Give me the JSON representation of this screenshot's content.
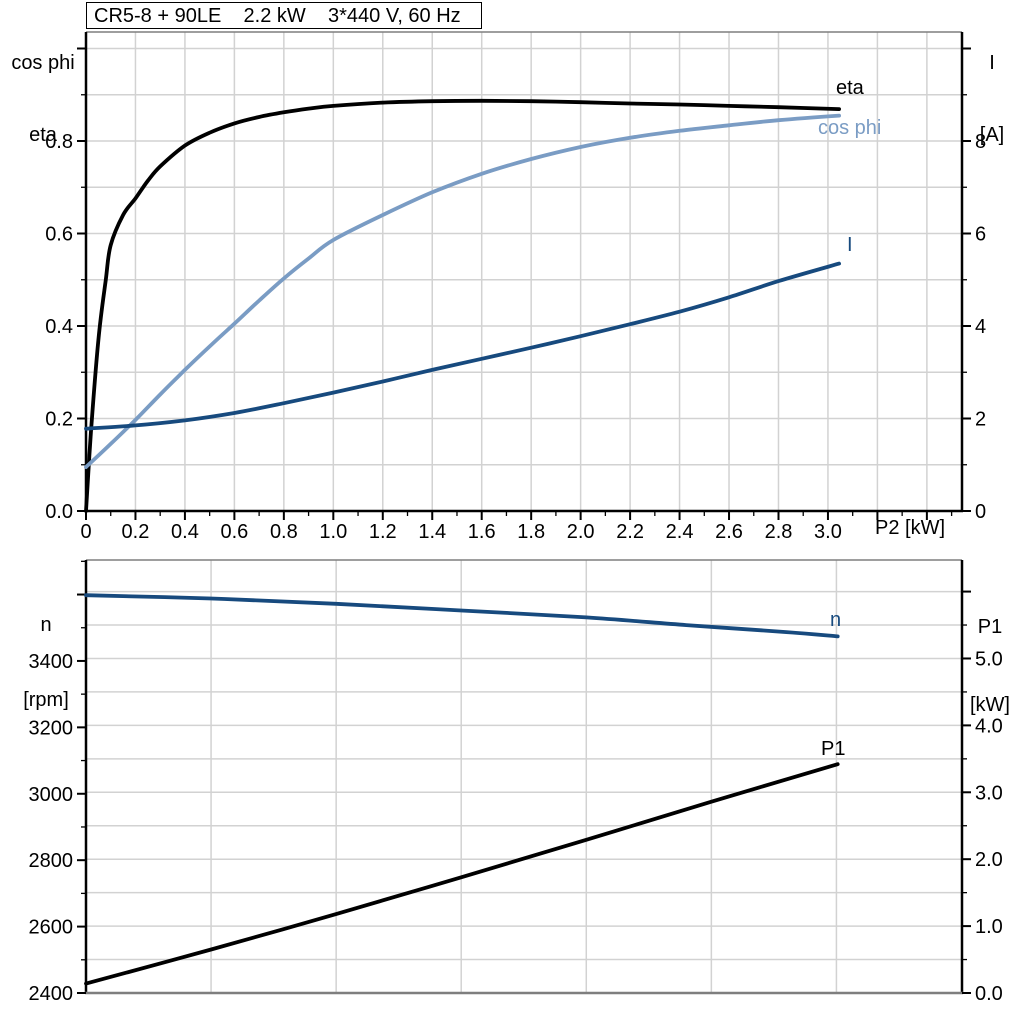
{
  "title": "CR5-8 + 90LE    2.2 kW    3*440 V, 60 Hz",
  "colors": {
    "grid": "#d2d2d2",
    "frame": "#000000",
    "frame_soft": "#7e7e7e",
    "tick": "#000000",
    "background": "#ffffff"
  },
  "chart_data": [
    {
      "type": "line",
      "name": "motor-efficiency-powerfactor-current",
      "x_axis": {
        "label": "P2 [kW]",
        "range": [
          0,
          3.542
        ],
        "major_step": 0.2,
        "minor_step": 0.1,
        "label_max": 3.0,
        "grid_step": 0.2,
        "grid_max": 3.4,
        "decimals": 1,
        "zero_label": "0"
      },
      "y_left": {
        "header_lines": [
          "cos phi",
          "eta"
        ],
        "range": [
          0,
          1.0357
        ],
        "major_step": 0.2,
        "minor_step": 0.1,
        "label_max": 0.8,
        "decimals": 1,
        "grid_step": 0.1,
        "grid_max": 1.0
      },
      "y_right": {
        "header_lines": [
          "I",
          "[A]"
        ],
        "range": [
          0,
          10.357
        ],
        "major_step": 2,
        "minor_step": 1,
        "label_max": 8,
        "decimals": 0
      },
      "legend_position": "curve-end-labels",
      "series": [
        {
          "name": "eta",
          "axis": "left",
          "color": "#000000",
          "points": [
            [
              0,
              0
            ],
            [
              0.02,
              0.17
            ],
            [
              0.05,
              0.37
            ],
            [
              0.08,
              0.5
            ],
            [
              0.1,
              0.575
            ],
            [
              0.15,
              0.64
            ],
            [
              0.2,
              0.676
            ],
            [
              0.25,
              0.714
            ],
            [
              0.3,
              0.745
            ],
            [
              0.4,
              0.79
            ],
            [
              0.5,
              0.818
            ],
            [
              0.6,
              0.838
            ],
            [
              0.7,
              0.852
            ],
            [
              0.8,
              0.862
            ],
            [
              0.9,
              0.87
            ],
            [
              1.0,
              0.876
            ],
            [
              1.2,
              0.883
            ],
            [
              1.4,
              0.886
            ],
            [
              1.6,
              0.887
            ],
            [
              1.8,
              0.886
            ],
            [
              2.0,
              0.884
            ],
            [
              2.2,
              0.881
            ],
            [
              2.4,
              0.879
            ],
            [
              2.6,
              0.876
            ],
            [
              2.8,
              0.873
            ],
            [
              3.045,
              0.869
            ]
          ]
        },
        {
          "name": "cos phi",
          "axis": "left",
          "color": "#7a9cc4",
          "points": [
            [
              0,
              0.095
            ],
            [
              0.1,
              0.145
            ],
            [
              0.2,
              0.197
            ],
            [
              0.3,
              0.252
            ],
            [
              0.4,
              0.305
            ],
            [
              0.5,
              0.356
            ],
            [
              0.6,
              0.405
            ],
            [
              0.7,
              0.455
            ],
            [
              0.8,
              0.503
            ],
            [
              0.9,
              0.546
            ],
            [
              1.0,
              0.586
            ],
            [
              1.2,
              0.64
            ],
            [
              1.4,
              0.689
            ],
            [
              1.6,
              0.729
            ],
            [
              1.8,
              0.761
            ],
            [
              2.0,
              0.787
            ],
            [
              2.2,
              0.807
            ],
            [
              2.4,
              0.822
            ],
            [
              2.6,
              0.834
            ],
            [
              2.8,
              0.845
            ],
            [
              3.045,
              0.855
            ]
          ]
        },
        {
          "name": "I",
          "axis": "right",
          "color": "#174a7e",
          "points": [
            [
              0,
              1.78
            ],
            [
              0.2,
              1.85
            ],
            [
              0.4,
              1.96
            ],
            [
              0.6,
              2.12
            ],
            [
              0.8,
              2.33
            ],
            [
              1.0,
              2.56
            ],
            [
              1.2,
              2.8
            ],
            [
              1.4,
              3.05
            ],
            [
              1.6,
              3.29
            ],
            [
              1.8,
              3.53
            ],
            [
              2.0,
              3.78
            ],
            [
              2.2,
              4.04
            ],
            [
              2.4,
              4.31
            ],
            [
              2.6,
              4.62
            ],
            [
              2.8,
              4.97
            ],
            [
              3.045,
              5.35
            ]
          ]
        }
      ]
    },
    {
      "type": "line",
      "name": "speed-and-input-power",
      "x_axis": {
        "label": "",
        "range": [
          0,
          3.502
        ],
        "grid_step": 0.5,
        "grid_max": 3.0
      },
      "y_left": {
        "header_lines": [
          "n",
          "[rpm]"
        ],
        "range": [
          2400,
          3704
        ],
        "major_step": 200,
        "minor_step": 100,
        "label_max": 3400,
        "decimals": 0
      },
      "y_right": {
        "header_lines": [
          "P1",
          "[kW]"
        ],
        "range": [
          0,
          6.472
        ],
        "major_step": 1,
        "minor_step": 0.5,
        "label_max": 5,
        "decimals": 1,
        "grid_step": 0.5,
        "grid_max": 6.0
      },
      "legend_position": "curve-end-labels",
      "series": [
        {
          "name": "n",
          "axis": "left",
          "color": "#174a7e",
          "points": [
            [
              0,
              3598
            ],
            [
              0.5,
              3588
            ],
            [
              1.0,
              3572
            ],
            [
              1.5,
              3552
            ],
            [
              2.0,
              3531
            ],
            [
              2.4,
              3508
            ],
            [
              2.8,
              3487
            ],
            [
              3.005,
              3474
            ]
          ]
        },
        {
          "name": "P1",
          "axis": "right",
          "color": "#000000",
          "points": [
            [
              0,
              0.14
            ],
            [
              0.5,
              0.65
            ],
            [
              1.0,
              1.18
            ],
            [
              1.5,
              1.73
            ],
            [
              2.0,
              2.29
            ],
            [
              2.5,
              2.86
            ],
            [
              3.005,
              3.42
            ]
          ]
        }
      ]
    }
  ]
}
